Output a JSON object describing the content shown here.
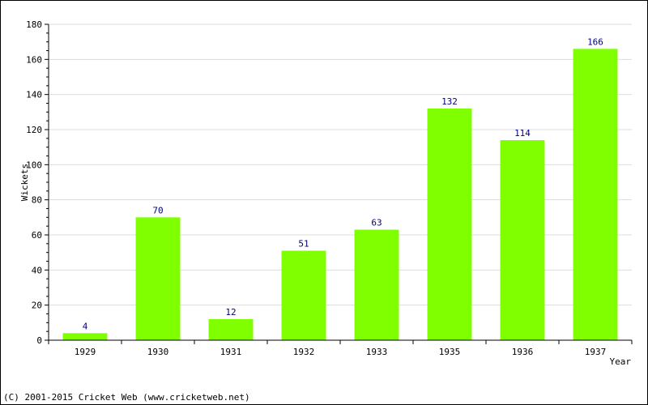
{
  "chart_data": {
    "type": "bar",
    "title": "",
    "xlabel": "Year",
    "ylabel": "Wickets",
    "categories": [
      "1929",
      "1930",
      "1931",
      "1932",
      "1933",
      "1935",
      "1936",
      "1937"
    ],
    "values": [
      4,
      70,
      12,
      51,
      63,
      132,
      114,
      166
    ],
    "data_labels": [
      "4",
      "70",
      "12",
      "51",
      "63",
      "132",
      "114",
      "166"
    ],
    "ylim": [
      0,
      180
    ],
    "yticks": [
      "0",
      "20",
      "40",
      "60",
      "80",
      "100",
      "120",
      "140",
      "160",
      "180"
    ],
    "grid": true,
    "bar_color": "#80ff00",
    "label_color": "#000080"
  },
  "footer": {
    "text": "(C) 2001-2015 Cricket Web (www.cricketweb.net)"
  }
}
